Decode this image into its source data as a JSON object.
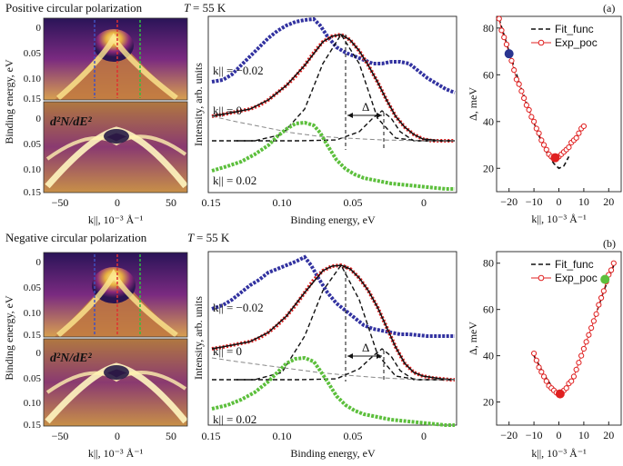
{
  "titles": {
    "top": "Positive circular polarization",
    "bottom": "Negative circular polarization",
    "temp_var": "T",
    "temp_val": "= 55 K"
  },
  "panel_labels": {
    "a": "(a)",
    "b": "(b)"
  },
  "arpes": {
    "ylabel": "Binding energy, eV",
    "xlabel": "k||, 10⁻³ Å⁻¹",
    "xticks": [
      "−50",
      "0",
      "50"
    ],
    "yticks_main": [
      "0",
      "0.05",
      "0.10",
      "0.15"
    ],
    "yticks_deriv": [
      "0",
      "0.05",
      "0.10",
      "0.15"
    ],
    "deriv_label": "d²N/dE²",
    "colors": {
      "dark": "#1a1040",
      "mid": "#8c2a8a",
      "bright": "#f4d060",
      "cut_left": "#4050c0",
      "cut_center": "#e03030",
      "cut_right": "#30c040"
    }
  },
  "edc": {
    "ylabel": "Intensity, arb. units",
    "xlabel": "Binding energy, eV",
    "xticks": [
      "0.15",
      "0.10",
      "0.05",
      "0"
    ],
    "labels": {
      "minus": "k|| = −0.02",
      "zero": "k|| = 0",
      "plus": "k|| = 0.02",
      "delta": "Δ"
    },
    "colors": {
      "blue": "#3232a0",
      "red": "#e02020",
      "green": "#5cbf3c",
      "fit": "#111111"
    }
  },
  "chart_data": [
    {
      "type": "scatter",
      "panel": "a",
      "title": "(a)",
      "xlabel": "k||, 10⁻³ Å⁻¹",
      "ylabel": "Δ, meV",
      "xlim": [
        -25,
        25
      ],
      "ylim": [
        10,
        85
      ],
      "xticks": [
        -20,
        -10,
        0,
        10,
        20
      ],
      "yticks": [
        20,
        40,
        60,
        80
      ],
      "legend": [
        "Fit_func",
        "Exp_poc"
      ],
      "series": [
        {
          "name": "Fit_func",
          "x": [
            -24,
            -20,
            -16,
            -12,
            -8,
            -5,
            -2,
            0,
            2,
            4
          ],
          "y": [
            84,
            70,
            57,
            45,
            34,
            27,
            22,
            20,
            21,
            25
          ]
        },
        {
          "name": "Exp_poc",
          "x": [
            -24,
            -23,
            -22,
            -21,
            -20,
            -19,
            -18,
            -17,
            -16,
            -15,
            -14,
            -13,
            -12,
            -11,
            -10,
            -9,
            -8,
            -7,
            -6,
            -5,
            -4,
            -3,
            -2,
            -1,
            0,
            1,
            2,
            3,
            4,
            5,
            6,
            7,
            8,
            9,
            10
          ],
          "y": [
            84,
            79,
            76,
            73,
            69,
            66,
            62,
            58,
            56,
            53,
            50,
            47,
            45,
            42,
            40,
            37,
            35,
            32,
            30,
            28,
            26,
            25,
            24,
            24,
            25,
            26,
            27,
            28,
            29,
            31,
            32,
            33,
            35,
            37,
            38
          ]
        }
      ],
      "highlight": [
        {
          "x": -20,
          "y": 69,
          "color": "#2a3590"
        },
        {
          "x": -1.5,
          "y": 24.5,
          "color": "#e02020"
        }
      ]
    },
    {
      "type": "scatter",
      "panel": "b",
      "title": "(b)",
      "xlabel": "k||, 10⁻³ Å⁻¹",
      "ylabel": "Δ, meV",
      "xlim": [
        -25,
        25
      ],
      "ylim": [
        10,
        85
      ],
      "xticks": [
        -20,
        -10,
        0,
        10,
        20
      ],
      "yticks": [
        20,
        40,
        60,
        80
      ],
      "legend": [
        "Fit_func",
        "Exp_poc"
      ],
      "series": [
        {
          "name": "Fit_func",
          "x": [
            -10,
            -6,
            -3,
            0,
            3,
            6,
            10,
            14,
            18,
            22
          ],
          "y": [
            40,
            32,
            27,
            24,
            26,
            32,
            42,
            55,
            68,
            79
          ]
        },
        {
          "name": "Exp_poc",
          "x": [
            -10,
            -9,
            -8,
            -7,
            -6,
            -5,
            -4,
            -3,
            -2,
            -1,
            0,
            1,
            2,
            3,
            4,
            5,
            6,
            7,
            8,
            9,
            10,
            11,
            12,
            13,
            14,
            15,
            16,
            17,
            18,
            19,
            20,
            21,
            22
          ],
          "y": [
            41,
            38,
            35,
            33,
            31,
            29,
            27,
            26,
            25,
            24,
            23.5,
            24,
            25,
            26,
            28,
            29,
            31,
            34,
            37,
            40,
            43,
            46,
            49,
            52,
            55,
            58,
            62,
            65,
            68,
            72,
            75,
            77,
            80
          ]
        }
      ],
      "highlight": [
        {
          "x": 0.5,
          "y": 23.5,
          "color": "#e02020"
        },
        {
          "x": 18.5,
          "y": 73,
          "color": "#5cbf3c"
        }
      ]
    }
  ]
}
